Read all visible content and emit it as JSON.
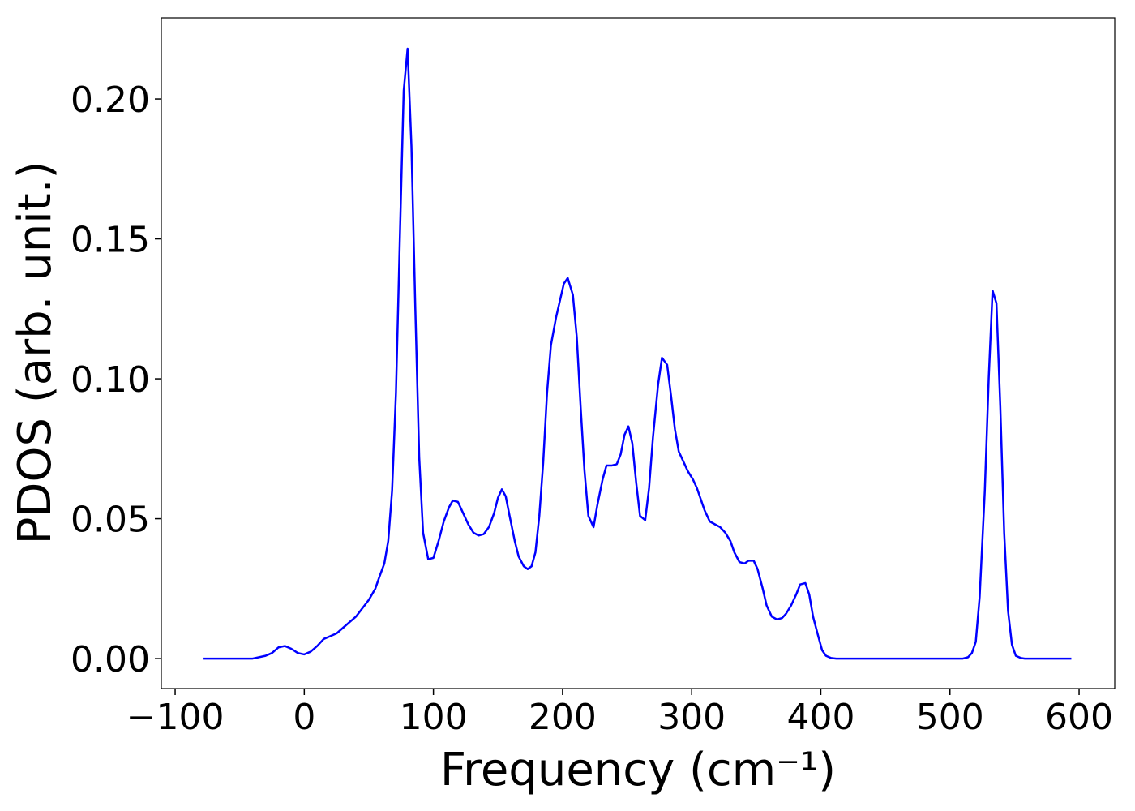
{
  "chart_data": {
    "type": "line",
    "x_label": "Frequency (cm⁻¹)",
    "y_label": "PDOS (arb. unit.)",
    "color": "#0000ff",
    "xlim": [
      -110.7,
      627.6
    ],
    "ylim": [
      -0.0107,
      0.229
    ],
    "xticks": [
      {
        "value": -100,
        "label": "−100"
      },
      0,
      100,
      200,
      300,
      400,
      500,
      600
    ],
    "yticks": [
      {
        "value": 0,
        "label": "0.00"
      },
      {
        "value": 0.05,
        "label": "0.05"
      },
      {
        "value": 0.1,
        "label": "0.10"
      },
      {
        "value": 0.15,
        "label": "0.15"
      },
      {
        "value": 0.2,
        "label": "0.20"
      }
    ],
    "x": [
      -78,
      -40,
      -30,
      -25,
      -20,
      -15,
      -10,
      -5,
      0,
      5,
      10,
      15,
      20,
      25,
      30,
      35,
      40,
      45,
      50,
      55,
      58,
      62,
      65,
      68,
      71,
      74,
      77,
      80,
      83,
      86,
      89,
      92,
      96,
      100,
      104,
      108,
      112,
      115,
      119,
      123,
      127,
      131,
      135,
      139,
      143,
      147,
      150,
      153,
      156,
      159,
      163,
      166,
      170,
      173,
      176,
      179,
      182,
      185,
      188,
      191,
      195,
      198,
      201,
      204,
      208,
      211,
      214,
      217,
      220,
      224,
      227,
      231,
      234,
      238,
      242,
      245,
      248,
      251,
      254,
      257,
      260,
      264,
      267,
      270,
      274,
      277,
      281,
      284,
      287,
      290,
      294,
      297,
      301,
      304,
      307,
      310,
      314,
      318,
      322,
      326,
      330,
      333,
      337,
      341,
      344,
      348,
      351,
      355,
      358,
      362,
      366,
      370,
      373,
      377,
      381,
      384,
      388,
      391,
      394,
      398,
      401,
      404,
      408,
      412,
      510,
      514,
      517,
      520,
      523,
      527,
      530,
      533,
      536,
      539,
      542,
      545,
      548,
      551,
      555,
      558,
      594
    ],
    "values": [
      0,
      0,
      0.001,
      0.002,
      0.004,
      0.0045,
      0.0035,
      0.002,
      0.0015,
      0.0025,
      0.0045,
      0.007,
      0.008,
      0.009,
      0.011,
      0.013,
      0.015,
      0.018,
      0.021,
      0.025,
      0.029,
      0.034,
      0.042,
      0.06,
      0.095,
      0.15,
      0.203,
      0.218,
      0.183,
      0.125,
      0.072,
      0.045,
      0.0355,
      0.036,
      0.042,
      0.049,
      0.054,
      0.0565,
      0.056,
      0.052,
      0.048,
      0.045,
      0.044,
      0.0445,
      0.047,
      0.052,
      0.0575,
      0.0605,
      0.058,
      0.051,
      0.042,
      0.0365,
      0.033,
      0.032,
      0.033,
      0.038,
      0.051,
      0.07,
      0.095,
      0.112,
      0.122,
      0.128,
      0.134,
      0.136,
      0.13,
      0.115,
      0.09,
      0.067,
      0.051,
      0.047,
      0.055,
      0.064,
      0.069,
      0.069,
      0.0695,
      0.073,
      0.08,
      0.083,
      0.077,
      0.063,
      0.051,
      0.0495,
      0.061,
      0.079,
      0.098,
      0.1075,
      0.105,
      0.094,
      0.082,
      0.074,
      0.07,
      0.067,
      0.064,
      0.061,
      0.057,
      0.053,
      0.049,
      0.048,
      0.047,
      0.045,
      0.042,
      0.038,
      0.0345,
      0.034,
      0.035,
      0.035,
      0.032,
      0.025,
      0.019,
      0.015,
      0.014,
      0.0145,
      0.016,
      0.019,
      0.023,
      0.0265,
      0.027,
      0.023,
      0.015,
      0.008,
      0.003,
      0.001,
      0.0002,
      0,
      0,
      0.0005,
      0.002,
      0.006,
      0.022,
      0.06,
      0.1,
      0.1315,
      0.127,
      0.09,
      0.045,
      0.017,
      0.005,
      0.001,
      0.0002,
      0,
      0
    ]
  }
}
